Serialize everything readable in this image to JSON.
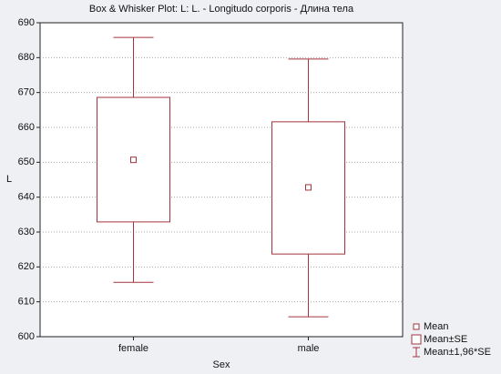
{
  "chart_data": {
    "type": "box",
    "title": "Box & Whisker Plot: L: L. - Longitudo corporis - Длина тела",
    "x_label": "Sex",
    "y_label": "L",
    "categories": [
      "female",
      "male"
    ],
    "means": [
      650.7,
      642.8
    ],
    "box_low": [
      632.9,
      623.7
    ],
    "box_high": [
      668.6,
      661.6
    ],
    "whisker_low": [
      615.6,
      605.7
    ],
    "whisker_high": [
      685.8,
      679.6
    ],
    "color": "#a3343c",
    "ylim": [
      600,
      690
    ],
    "yticks": [
      600,
      610,
      620,
      630,
      640,
      650,
      660,
      670,
      680,
      690
    ],
    "grid": true,
    "legend": [
      "Mean",
      "Mean±SE",
      "Mean±1,96*SE"
    ],
    "legend_position": "bottom-right"
  }
}
